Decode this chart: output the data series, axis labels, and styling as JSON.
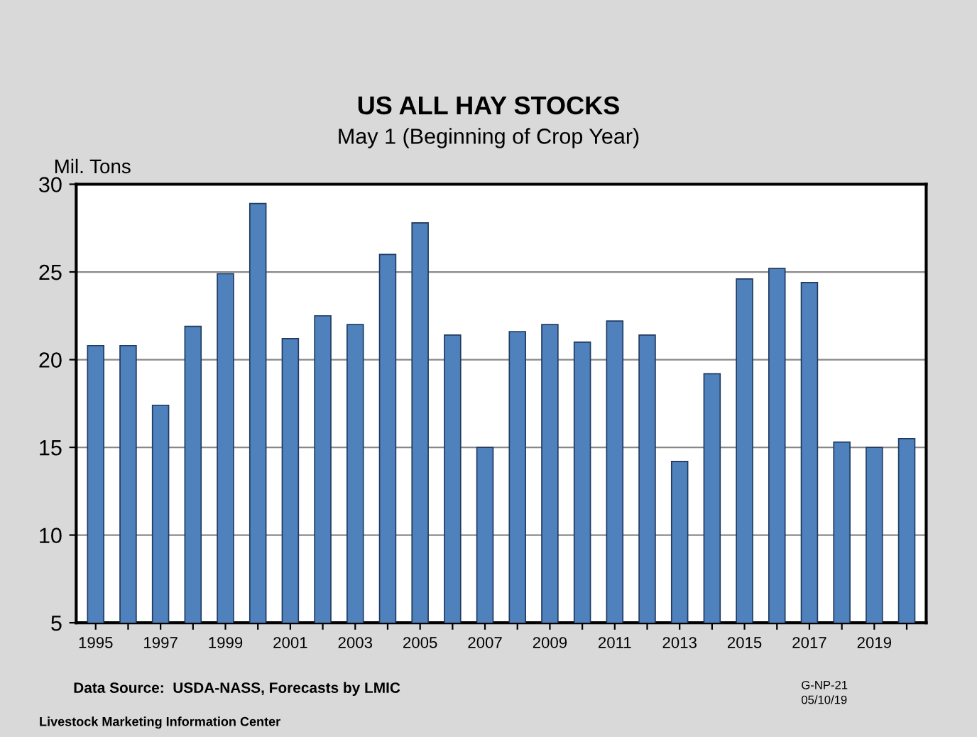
{
  "chart_data": {
    "type": "bar",
    "title": "US ALL HAY STOCKS",
    "subtitle": "May 1 (Beginning of Crop Year)",
    "ylabel": "Mil. Tons",
    "categories": [
      "1995",
      null,
      "1997",
      null,
      "1999",
      null,
      "2001",
      null,
      "2003",
      null,
      "2005",
      null,
      "2007",
      null,
      "2009",
      null,
      "2011",
      null,
      "2013",
      null,
      "2015",
      null,
      "2017",
      null,
      "2019",
      null
    ],
    "values": [
      20.8,
      20.8,
      17.4,
      21.9,
      24.9,
      28.9,
      21.2,
      22.5,
      22.0,
      26.0,
      27.8,
      21.4,
      15.0,
      21.6,
      22.0,
      21.0,
      22.2,
      21.4,
      14.2,
      19.2,
      24.6,
      25.2,
      24.4,
      15.3,
      15.0,
      15.5
    ],
    "color": "#4f81bd",
    "ylim": [
      5,
      30
    ],
    "yticks": [
      5,
      10,
      15,
      20,
      25,
      30
    ],
    "grid": "y",
    "legend": false,
    "annotations": [
      "Data Source:  USDA-NASS, Forecasts by LMIC",
      "Livestock Marketing Information Center",
      "G-NP-21",
      "05/10/19"
    ]
  }
}
